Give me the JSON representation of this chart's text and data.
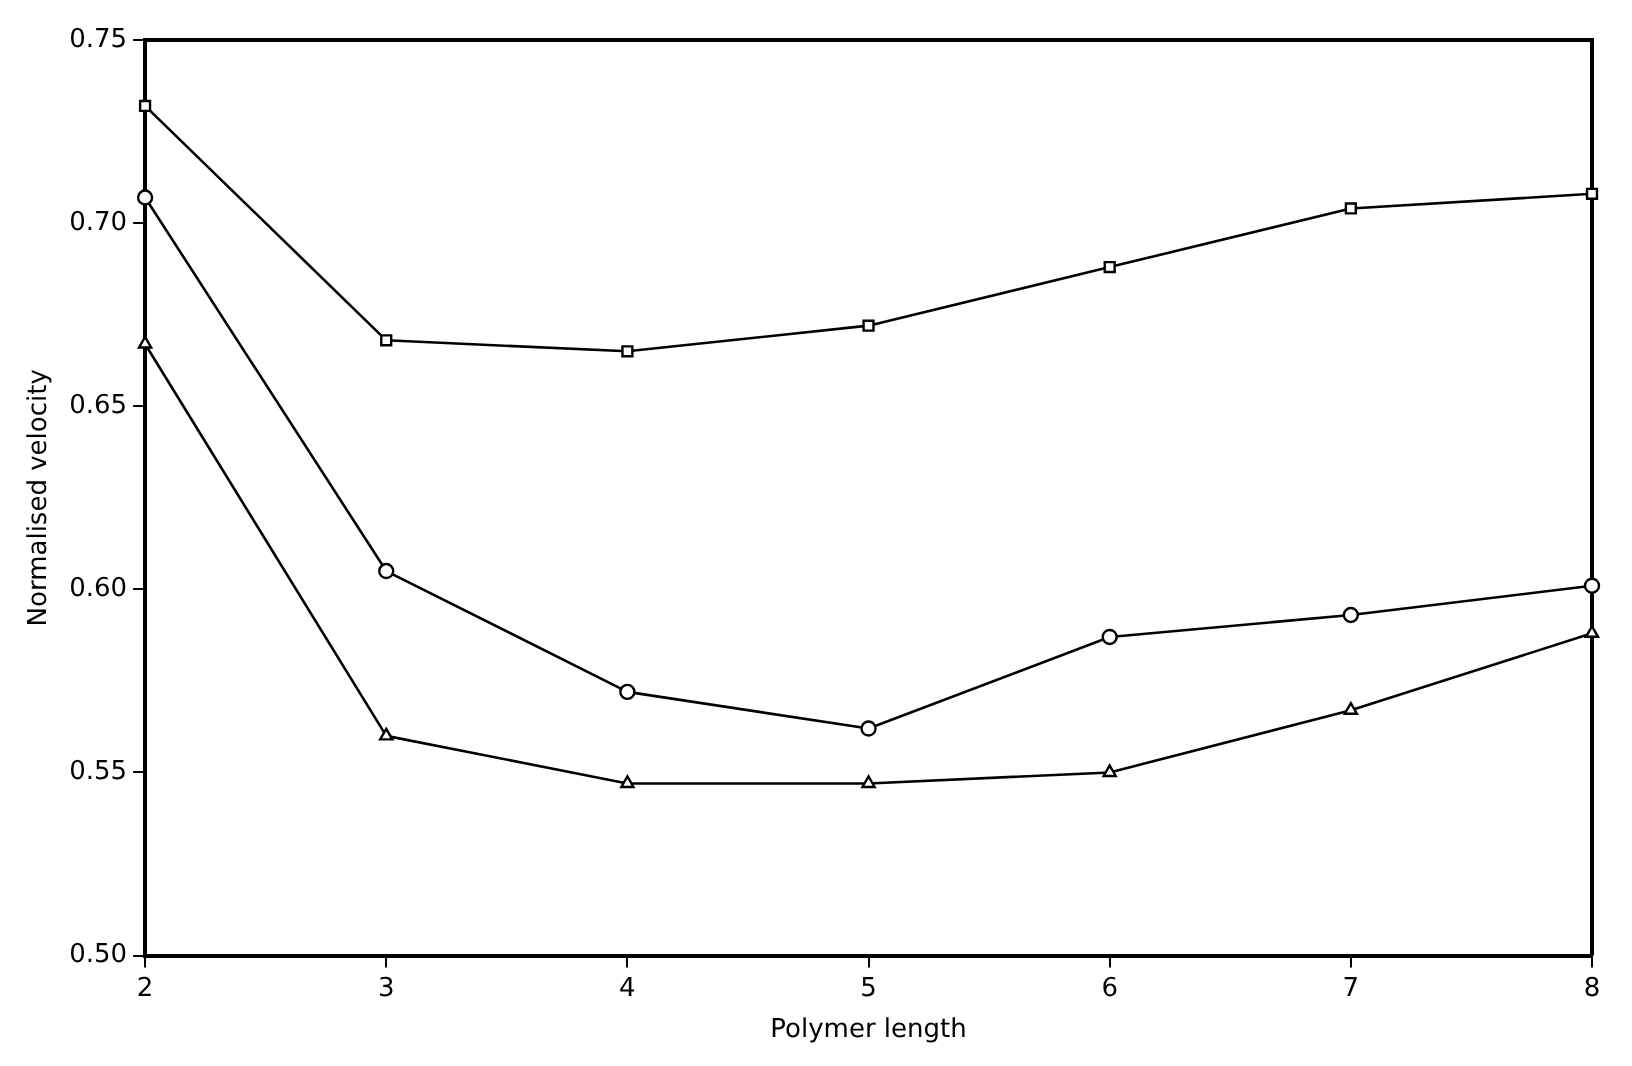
{
  "chart_data": {
    "type": "line",
    "xlabel": "Polymer length",
    "ylabel": "Normalised velocity",
    "x": [
      2,
      3,
      4,
      5,
      6,
      7,
      8
    ],
    "xlim": [
      2,
      8
    ],
    "xticks": [
      2,
      3,
      4,
      5,
      6,
      7,
      8
    ],
    "ylim": [
      0.5,
      0.75
    ],
    "yticks": [
      {
        "value": 0.5,
        "label": "0.50"
      },
      {
        "value": 0.55,
        "label": "0.55"
      },
      {
        "value": 0.6,
        "label": "0.60"
      },
      {
        "value": 0.65,
        "label": "0.65"
      },
      {
        "value": 0.7,
        "label": "0.70"
      },
      {
        "value": 0.75,
        "label": "0.75"
      }
    ],
    "grid": false,
    "legend": false,
    "series": [
      {
        "color": "#000000",
        "marker": "square",
        "values": [
          0.732,
          0.668,
          0.665,
          0.672,
          0.688,
          0.704,
          0.708
        ]
      },
      {
        "color": "#000000",
        "marker": "circle",
        "values": [
          0.707,
          0.605,
          0.572,
          0.562,
          0.587,
          0.593,
          0.601
        ]
      },
      {
        "color": "#000000",
        "marker": "triangle",
        "values": [
          0.667,
          0.56,
          0.547,
          0.547,
          0.55,
          0.567,
          0.588
        ]
      }
    ]
  }
}
